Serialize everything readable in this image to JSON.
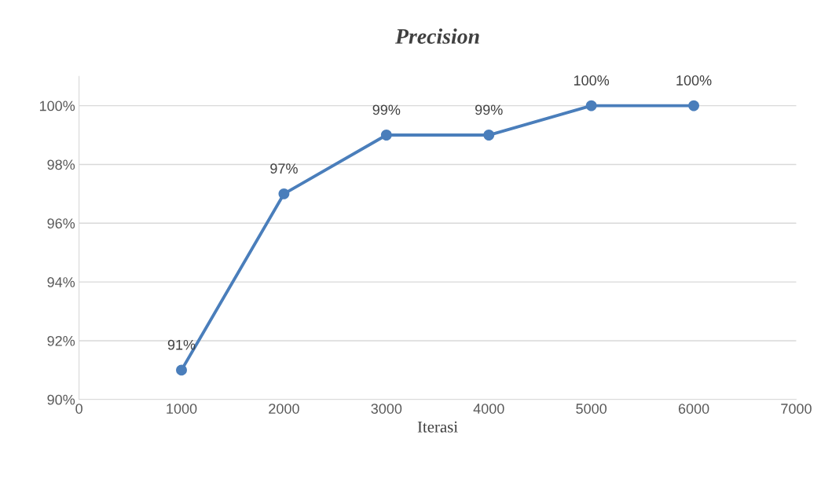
{
  "chart_data": {
    "type": "line",
    "title": "Precision",
    "xlabel": "Iterasi",
    "x": [
      1000,
      2000,
      3000,
      4000,
      5000,
      6000
    ],
    "series": [
      {
        "color": "#4a7ebb",
        "values": [
          91,
          97,
          99,
          99,
          100,
          100
        ],
        "value_labels": [
          "91%",
          "97%",
          "99%",
          "99%",
          "100%",
          "100%"
        ]
      }
    ],
    "xlim": [
      0,
      7000
    ],
    "xticks": [
      0,
      1000,
      2000,
      3000,
      4000,
      5000,
      6000,
      7000
    ],
    "ylim": [
      90,
      101
    ],
    "yticks": [
      {
        "value": 90,
        "label": "90%"
      },
      {
        "value": 92,
        "label": "92%"
      },
      {
        "value": 94,
        "label": "94%"
      },
      {
        "value": 96,
        "label": "96%"
      },
      {
        "value": 98,
        "label": "98%"
      },
      {
        "value": 100,
        "label": "100%"
      }
    ],
    "grid": "y",
    "marker": "circle",
    "line_style": "solid",
    "legend": false
  }
}
